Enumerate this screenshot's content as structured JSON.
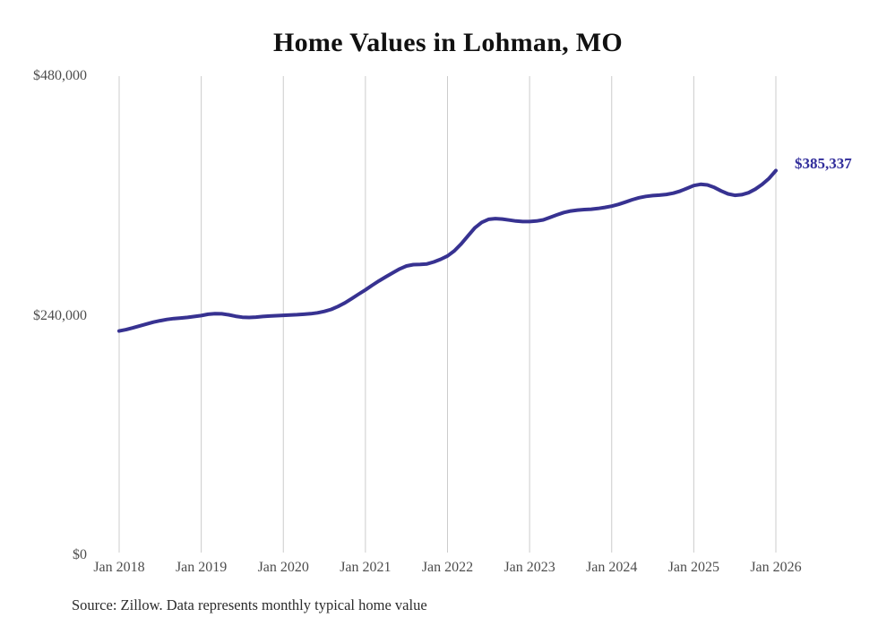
{
  "chart_data": {
    "type": "line",
    "title": "Home Values in Lohman, MO",
    "source": "Source: Zillow. Data represents monthly typical home value",
    "end_label": "$385,337",
    "end_value": 385337,
    "frequency": "monthly",
    "x_start": "Jan 2018",
    "x_end": "Jan 2026",
    "x_tick_labels": [
      "Jan 2018",
      "Jan 2019",
      "Jan 2020",
      "Jan 2021",
      "Jan 2022",
      "Jan 2023",
      "Jan 2024",
      "Jan 2025",
      "Jan 2026"
    ],
    "months_per_tick": 12,
    "y_ticks": [
      {
        "label": "$0",
        "value": 0
      },
      {
        "label": "$240,000",
        "value": 240000
      },
      {
        "label": "$480,000",
        "value": 480000
      }
    ],
    "ylim": [
      0,
      480000
    ],
    "grid": "vertical-only",
    "legend": "none",
    "line_color": "#373291",
    "end_label_color": "#312d9b",
    "grid_color": "#cccccc",
    "values": [
      224700,
      226000,
      227800,
      229800,
      231700,
      233500,
      235000,
      236200,
      237100,
      237700,
      238300,
      239200,
      240100,
      241400,
      242100,
      241900,
      240900,
      239500,
      238500,
      238200,
      238600,
      239200,
      239600,
      240000,
      240400,
      240700,
      241000,
      241400,
      242000,
      242900,
      244300,
      246300,
      249200,
      252800,
      257100,
      261500,
      265800,
      270500,
      274900,
      279000,
      283000,
      286800,
      289800,
      291100,
      291400,
      291900,
      293800,
      296500,
      299800,
      305000,
      312000,
      320000,
      328000,
      333500,
      336500,
      337300,
      336800,
      335800,
      334800,
      334300,
      334300,
      334800,
      336000,
      338500,
      341000,
      343400,
      344900,
      345800,
      346300,
      346700,
      347400,
      348500,
      349700,
      351500,
      353800,
      356200,
      358200,
      359500,
      360300,
      360800,
      361500,
      362700,
      364800,
      367500,
      370400,
      371600,
      371000,
      368500,
      365000,
      362000,
      360600,
      361200,
      363200,
      366800,
      371500,
      377500,
      385337
    ]
  }
}
